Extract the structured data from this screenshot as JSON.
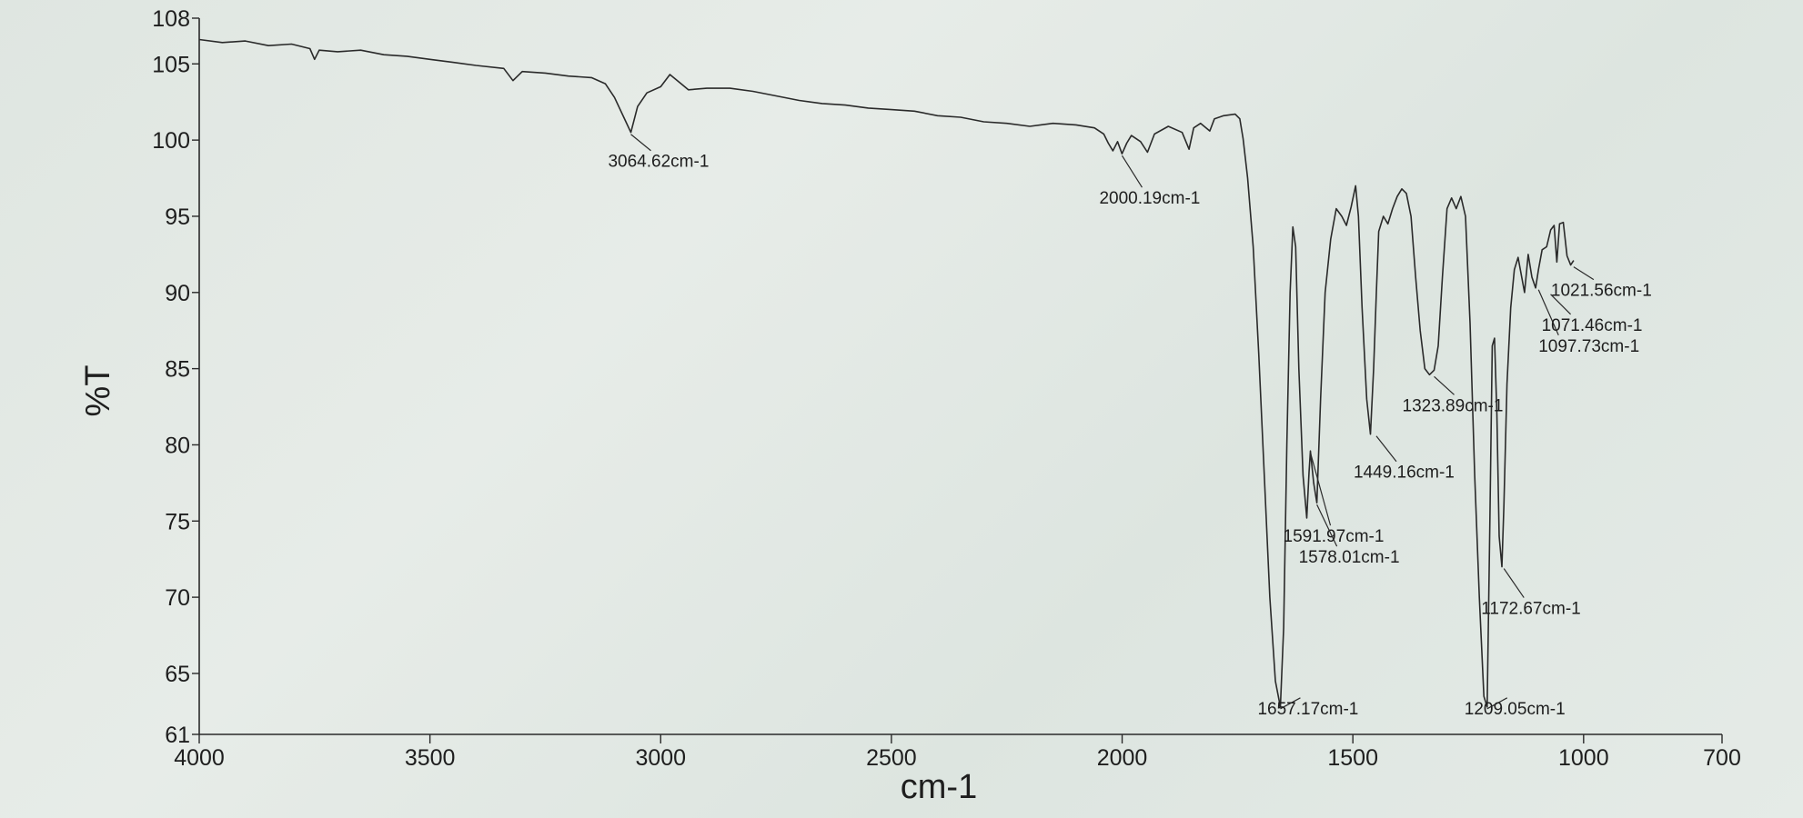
{
  "chart_data": {
    "type": "line",
    "title": "",
    "xlabel": "cm-1",
    "ylabel": "%T",
    "xlim": [
      4000,
      700
    ],
    "ylim": [
      61,
      108
    ],
    "x_ticks": [
      "4000",
      "3500",
      "3000",
      "2500",
      "2000",
      "1500",
      "1000",
      "700"
    ],
    "y_ticks": [
      "108",
      "105",
      "100",
      "95",
      "90",
      "85",
      "80",
      "75",
      "70",
      "65",
      "61"
    ],
    "grid": false,
    "series": [
      {
        "name": "",
        "color": "#2a2a2a",
        "points": [
          [
            4000,
            106.6
          ],
          [
            3950,
            106.4
          ],
          [
            3900,
            106.5
          ],
          [
            3850,
            106.2
          ],
          [
            3800,
            106.3
          ],
          [
            3760,
            106.0
          ],
          [
            3750,
            105.3
          ],
          [
            3740,
            105.9
          ],
          [
            3700,
            105.8
          ],
          [
            3650,
            105.9
          ],
          [
            3600,
            105.6
          ],
          [
            3550,
            105.5
          ],
          [
            3500,
            105.3
          ],
          [
            3450,
            105.1
          ],
          [
            3400,
            104.9
          ],
          [
            3340,
            104.7
          ],
          [
            3320,
            103.9
          ],
          [
            3300,
            104.5
          ],
          [
            3250,
            104.4
          ],
          [
            3200,
            104.2
          ],
          [
            3150,
            104.1
          ],
          [
            3120,
            103.7
          ],
          [
            3100,
            102.8
          ],
          [
            3080,
            101.5
          ],
          [
            3064.62,
            100.5
          ],
          [
            3050,
            102.2
          ],
          [
            3030,
            103.1
          ],
          [
            3000,
            103.5
          ],
          [
            2980,
            104.3
          ],
          [
            2960,
            103.8
          ],
          [
            2940,
            103.3
          ],
          [
            2900,
            103.4
          ],
          [
            2850,
            103.4
          ],
          [
            2800,
            103.2
          ],
          [
            2750,
            102.9
          ],
          [
            2700,
            102.6
          ],
          [
            2650,
            102.4
          ],
          [
            2600,
            102.3
          ],
          [
            2550,
            102.1
          ],
          [
            2500,
            102.0
          ],
          [
            2450,
            101.9
          ],
          [
            2400,
            101.6
          ],
          [
            2350,
            101.5
          ],
          [
            2300,
            101.2
          ],
          [
            2250,
            101.1
          ],
          [
            2200,
            100.9
          ],
          [
            2150,
            101.1
          ],
          [
            2100,
            101.0
          ],
          [
            2060,
            100.8
          ],
          [
            2040,
            100.4
          ],
          [
            2030,
            99.8
          ],
          [
            2020,
            99.3
          ],
          [
            2010,
            99.9
          ],
          [
            2000.19,
            99.1
          ],
          [
            1990,
            99.8
          ],
          [
            1980,
            100.3
          ],
          [
            1960,
            99.9
          ],
          [
            1945,
            99.2
          ],
          [
            1930,
            100.4
          ],
          [
            1900,
            100.9
          ],
          [
            1870,
            100.5
          ],
          [
            1855,
            99.4
          ],
          [
            1845,
            100.8
          ],
          [
            1830,
            101.1
          ],
          [
            1810,
            100.6
          ],
          [
            1800,
            101.4
          ],
          [
            1780,
            101.6
          ],
          [
            1755,
            101.7
          ],
          [
            1745,
            101.4
          ],
          [
            1738,
            100.1
          ],
          [
            1728,
            97.5
          ],
          [
            1716,
            93.0
          ],
          [
            1704,
            86.0
          ],
          [
            1692,
            78.0
          ],
          [
            1680,
            70.0
          ],
          [
            1668,
            64.5
          ],
          [
            1657.17,
            62.8
          ],
          [
            1650,
            68.0
          ],
          [
            1643,
            80.0
          ],
          [
            1636,
            90.0
          ],
          [
            1630,
            94.3
          ],
          [
            1624,
            93.0
          ],
          [
            1617,
            85.0
          ],
          [
            1608,
            78.0
          ],
          [
            1600,
            75.2
          ],
          [
            1595,
            78.2
          ],
          [
            1591.97,
            79.6
          ],
          [
            1585,
            77.5
          ],
          [
            1578.01,
            76.2
          ],
          [
            1570,
            83.0
          ],
          [
            1560,
            90.0
          ],
          [
            1548,
            93.5
          ],
          [
            1536,
            95.5
          ],
          [
            1524,
            95.0
          ],
          [
            1514,
            94.4
          ],
          [
            1504,
            95.6
          ],
          [
            1494,
            97.0
          ],
          [
            1488,
            95.0
          ],
          [
            1480,
            89.0
          ],
          [
            1470,
            83.0
          ],
          [
            1462,
            80.7
          ],
          [
            1455,
            85.0
          ],
          [
            1449.16,
            90.0
          ],
          [
            1444,
            94.0
          ],
          [
            1434,
            95.0
          ],
          [
            1424,
            94.5
          ],
          [
            1414,
            95.5
          ],
          [
            1404,
            96.3
          ],
          [
            1394,
            96.8
          ],
          [
            1384,
            96.5
          ],
          [
            1374,
            95.0
          ],
          [
            1364,
            91.0
          ],
          [
            1354,
            87.5
          ],
          [
            1344,
            85.0
          ],
          [
            1334,
            84.6
          ],
          [
            1323.89,
            84.9
          ],
          [
            1315,
            86.5
          ],
          [
            1306,
            91.0
          ],
          [
            1296,
            95.5
          ],
          [
            1286,
            96.2
          ],
          [
            1276,
            95.5
          ],
          [
            1266,
            96.3
          ],
          [
            1256,
            95.0
          ],
          [
            1246,
            88.0
          ],
          [
            1236,
            78.0
          ],
          [
            1226,
            70.0
          ],
          [
            1216,
            63.5
          ],
          [
            1209.05,
            62.8
          ],
          [
            1203,
            75.0
          ],
          [
            1198,
            86.5
          ],
          [
            1193,
            87.0
          ],
          [
            1188,
            82.0
          ],
          [
            1183,
            74.0
          ],
          [
            1177,
            72.0
          ],
          [
            1172.67,
            76.0
          ],
          [
            1166,
            84.0
          ],
          [
            1158,
            89.0
          ],
          [
            1150,
            91.5
          ],
          [
            1142,
            92.3
          ],
          [
            1134,
            91.0
          ],
          [
            1128,
            90.0
          ],
          [
            1120,
            92.5
          ],
          [
            1112,
            91.0
          ],
          [
            1104,
            90.3
          ],
          [
            1097.73,
            91.5
          ],
          [
            1090,
            92.8
          ],
          [
            1080,
            93.0
          ],
          [
            1071.46,
            94.1
          ],
          [
            1064,
            94.4
          ],
          [
            1058,
            92.0
          ],
          [
            1052,
            94.5
          ],
          [
            1044,
            94.6
          ],
          [
            1036,
            92.4
          ],
          [
            1028,
            91.8
          ],
          [
            1021.56,
            92.1
          ]
        ]
      }
    ],
    "peak_labels": [
      {
        "x": 3064.62,
        "y": 100.5,
        "label": "3064.62cm-1"
      },
      {
        "x": 2000.19,
        "y": 99.1,
        "label": "2000.19cm-1"
      },
      {
        "x": 1657.17,
        "y": 62.8,
        "label": "1657.17cm-1"
      },
      {
        "x": 1591.97,
        "y": 79.6,
        "label": "1591.97cm-1"
      },
      {
        "x": 1578.01,
        "y": 76.2,
        "label": "1578.01cm-1"
      },
      {
        "x": 1449.16,
        "y": 80.7,
        "label": "1449.16cm-1"
      },
      {
        "x": 1323.89,
        "y": 84.6,
        "label": "1323.89cm-1"
      },
      {
        "x": 1209.05,
        "y": 62.8,
        "label": "1209.05cm-1"
      },
      {
        "x": 1172.67,
        "y": 72.0,
        "label": "1172.67cm-1"
      },
      {
        "x": 1097.73,
        "y": 90.3,
        "label": "1097.73cm-1"
      },
      {
        "x": 1071.46,
        "y": 90.0,
        "label": "1071.46cm-1"
      },
      {
        "x": 1021.56,
        "y": 91.8,
        "label": "1021.56cm-1"
      }
    ]
  }
}
